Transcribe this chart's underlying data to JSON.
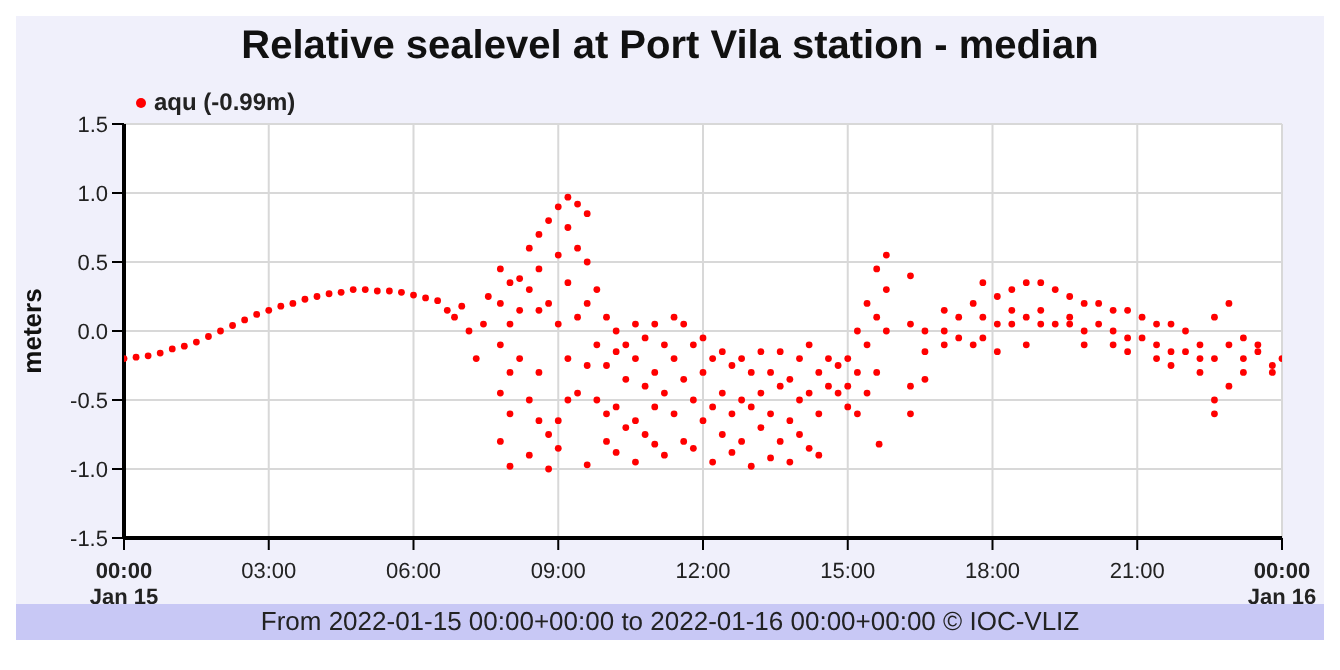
{
  "chart_data": {
    "type": "scatter",
    "title": "Relative sealevel at Port Vila station - median",
    "ylabel": "meters",
    "annotations": [
      "From 2022-01-15 00:00+00:00 to 2022-01-16 00:00+00:00 © IOC-VLIZ"
    ],
    "xlim": [
      0,
      24
    ],
    "xticks": [
      {
        "value": 0,
        "label": "00:00\nJan 15"
      },
      {
        "value": 3,
        "label": "03:00"
      },
      {
        "value": 6,
        "label": "06:00"
      },
      {
        "value": 9,
        "label": "09:00"
      },
      {
        "value": 12,
        "label": "12:00"
      },
      {
        "value": 15,
        "label": "15:00"
      },
      {
        "value": 18,
        "label": "18:00"
      },
      {
        "value": 21,
        "label": "21:00"
      },
      {
        "value": 24,
        "label": "00:00\nJan 16"
      }
    ],
    "ylim": [
      -1.5,
      1.5
    ],
    "yticks": [
      {
        "value": -1.5,
        "label": "-1.5"
      },
      {
        "value": -1,
        "label": "-1.0"
      },
      {
        "value": -0.5,
        "label": "-0.5"
      },
      {
        "value": 0,
        "label": "0.0"
      },
      {
        "value": 0.5,
        "label": "0.5"
      },
      {
        "value": 1,
        "label": "1.0"
      },
      {
        "value": 1.5,
        "label": "1.5"
      }
    ],
    "grid": true,
    "legend": "top left",
    "marker": "circle",
    "series": [
      {
        "name": "aqu (-0.99m)",
        "color": "#ff0000",
        "x": [
          0,
          0.25,
          0.5,
          0.75,
          1,
          1.25,
          1.5,
          1.75,
          2,
          2.25,
          2.5,
          2.75,
          3,
          3.25,
          3.5,
          3.75,
          4,
          4.25,
          4.5,
          4.75,
          5,
          5.25,
          5.5,
          5.75,
          6,
          6.25,
          6.5,
          6.7,
          6.85,
          7,
          7.15,
          7.3,
          7.45,
          7.55,
          7.8,
          7.8,
          7.8,
          7.8,
          7.8,
          8,
          8,
          8,
          8,
          8,
          8.2,
          8.2,
          8.2,
          8.4,
          8.4,
          8.4,
          8.4,
          8.6,
          8.6,
          8.6,
          8.6,
          8.6,
          8.8,
          8.8,
          8.8,
          8.8,
          9,
          9,
          9,
          9,
          9,
          9.2,
          9.2,
          9.2,
          9.2,
          9.2,
          9.4,
          9.4,
          9.4,
          9.4,
          9.6,
          9.6,
          9.6,
          9.6,
          9.6,
          9.8,
          9.8,
          9.8,
          10,
          10,
          10,
          10,
          10.2,
          10.2,
          10.2,
          10.2,
          10.4,
          10.4,
          10.4,
          10.6,
          10.6,
          10.6,
          10.6,
          10.8,
          10.8,
          10.8,
          11,
          11,
          11,
          11,
          11.2,
          11.2,
          11.2,
          11.4,
          11.4,
          11.4,
          11.6,
          11.6,
          11.6,
          11.8,
          11.8,
          11.8,
          12,
          12,
          12,
          12.2,
          12.2,
          12.2,
          12.4,
          12.4,
          12.4,
          12.6,
          12.6,
          12.6,
          12.8,
          12.8,
          12.8,
          13,
          13,
          13,
          13.2,
          13.2,
          13.2,
          13.4,
          13.4,
          13.4,
          13.6,
          13.6,
          13.6,
          13.8,
          13.8,
          13.8,
          14,
          14,
          14,
          14.2,
          14.2,
          14.2,
          14.4,
          14.4,
          14.4,
          14.6,
          14.6,
          14.8,
          14.8,
          15,
          15,
          15,
          15.2,
          15.2,
          15.2,
          15.4,
          15.4,
          15.4,
          15.6,
          15.6,
          15.6,
          15.65,
          15.8,
          15.8,
          15.8,
          16.3,
          16.3,
          16.3,
          16.3,
          16.6,
          16.6,
          16.6,
          17,
          17,
          17,
          17.3,
          17.3,
          17.6,
          17.6,
          17.8,
          17.8,
          17.8,
          18.1,
          18.1,
          18.1,
          18.4,
          18.4,
          18.4,
          18.7,
          18.7,
          18.7,
          19,
          19,
          19,
          19.3,
          19.3,
          19.6,
          19.6,
          19.6,
          19.9,
          19.9,
          19.9,
          20.2,
          20.2,
          20.5,
          20.5,
          20.5,
          20.8,
          20.8,
          20.8,
          21.1,
          21.1,
          21.4,
          21.4,
          21.4,
          21.7,
          21.7,
          21.7,
          22,
          22,
          22.3,
          22.3,
          22.3,
          22.6,
          22.6,
          22.6,
          22.6,
          22.9,
          22.9,
          22.9,
          23.2,
          23.2,
          23.2,
          23.5,
          23.5,
          23.8,
          23.8,
          24
        ],
        "values": [
          -0.2,
          -0.19,
          -0.18,
          -0.16,
          -0.13,
          -0.11,
          -0.08,
          -0.04,
          0,
          0.04,
          0.08,
          0.12,
          0.15,
          0.18,
          0.2,
          0.23,
          0.25,
          0.27,
          0.28,
          0.3,
          0.3,
          0.29,
          0.29,
          0.28,
          0.26,
          0.24,
          0.22,
          0.15,
          0.1,
          0.18,
          0,
          -0.2,
          0.05,
          0.25,
          0.45,
          0.2,
          -0.1,
          -0.45,
          -0.8,
          0.35,
          0.05,
          -0.3,
          -0.6,
          -0.98,
          0.38,
          0.15,
          -0.2,
          0.6,
          0.3,
          -0.5,
          -0.9,
          0.7,
          0.45,
          0.15,
          -0.3,
          -0.65,
          0.8,
          0.2,
          -0.75,
          -1,
          0.9,
          0.55,
          0.05,
          -0.65,
          -0.85,
          0.97,
          0.75,
          0.35,
          -0.2,
          -0.5,
          0.92,
          0.6,
          0.1,
          -0.45,
          0.85,
          0.5,
          0.2,
          -0.25,
          -0.97,
          0.3,
          -0.1,
          -0.5,
          0.1,
          -0.25,
          -0.6,
          -0.8,
          0,
          -0.15,
          -0.55,
          -0.88,
          -0.1,
          -0.35,
          -0.7,
          0.05,
          -0.2,
          -0.65,
          -0.95,
          -0.05,
          -0.4,
          -0.75,
          0.05,
          -0.3,
          -0.55,
          -0.82,
          -0.1,
          -0.45,
          -0.9,
          0.1,
          -0.2,
          -0.6,
          0.05,
          -0.35,
          -0.8,
          -0.1,
          -0.5,
          -0.85,
          -0.05,
          -0.3,
          -0.65,
          -0.2,
          -0.55,
          -0.95,
          -0.15,
          -0.45,
          -0.75,
          -0.25,
          -0.6,
          -0.88,
          -0.2,
          -0.5,
          -0.8,
          -0.3,
          -0.55,
          -0.98,
          -0.15,
          -0.45,
          -0.7,
          -0.3,
          -0.6,
          -0.92,
          -0.15,
          -0.4,
          -0.8,
          -0.35,
          -0.65,
          -0.95,
          -0.2,
          -0.5,
          -0.75,
          -0.1,
          -0.45,
          -0.85,
          -0.3,
          -0.6,
          -0.9,
          -0.2,
          -0.4,
          -0.25,
          -0.45,
          -0.2,
          -0.4,
          -0.55,
          0,
          -0.3,
          -0.6,
          0.2,
          -0.1,
          -0.45,
          0.45,
          0.1,
          -0.3,
          -0.82,
          0.55,
          0.3,
          0,
          0.4,
          0.05,
          -0.4,
          -0.6,
          0,
          -0.15,
          -0.35,
          0.15,
          0,
          -0.1,
          0.1,
          -0.05,
          0.2,
          -0.1,
          0.35,
          0.1,
          -0.05,
          0.25,
          0.05,
          -0.15,
          0.3,
          0.15,
          0.05,
          0.35,
          0.1,
          -0.1,
          0.35,
          0.15,
          0.05,
          0.3,
          0.05,
          0.25,
          0.1,
          0.05,
          0.2,
          0,
          -0.1,
          0.2,
          0.05,
          0.15,
          0,
          -0.1,
          0.15,
          -0.05,
          -0.15,
          0.1,
          -0.05,
          0.05,
          -0.1,
          -0.2,
          0.05,
          -0.15,
          -0.25,
          0,
          -0.15,
          -0.1,
          -0.2,
          -0.3,
          0.1,
          -0.2,
          -0.5,
          -0.6,
          0.2,
          -0.1,
          -0.4,
          -0.05,
          -0.2,
          -0.3,
          -0.1,
          -0.15,
          -0.25,
          -0.3,
          -0.2
        ]
      }
    ]
  }
}
